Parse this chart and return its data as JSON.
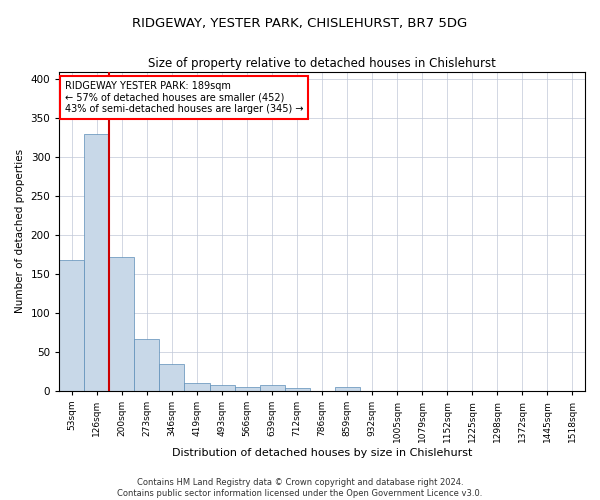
{
  "title": "RIDGEWAY, YESTER PARK, CHISLEHURST, BR7 5DG",
  "subtitle": "Size of property relative to detached houses in Chislehurst",
  "xlabel": "Distribution of detached houses by size in Chislehurst",
  "ylabel": "Number of detached properties",
  "bar_color": "#c8d8e8",
  "bar_edge_color": "#5b8db8",
  "property_line_color": "#cc0000",
  "categories": [
    "53sqm",
    "126sqm",
    "200sqm",
    "273sqm",
    "346sqm",
    "419sqm",
    "493sqm",
    "566sqm",
    "639sqm",
    "712sqm",
    "786sqm",
    "859sqm",
    "932sqm",
    "1005sqm",
    "1079sqm",
    "1152sqm",
    "1225sqm",
    "1298sqm",
    "1372sqm",
    "1445sqm",
    "1518sqm"
  ],
  "values": [
    168,
    330,
    172,
    67,
    35,
    10,
    8,
    5,
    8,
    3,
    0,
    5,
    0,
    0,
    0,
    0,
    0,
    0,
    0,
    0,
    0
  ],
  "property_bin_index": 1,
  "annotation_line1": "RIDGEWAY YESTER PARK: 189sqm",
  "annotation_line2": "← 57% of detached houses are smaller (452)",
  "annotation_line3": "43% of semi-detached houses are larger (345) →",
  "ylim": [
    0,
    410
  ],
  "yticks": [
    0,
    50,
    100,
    150,
    200,
    250,
    300,
    350,
    400
  ],
  "background_color": "#ffffff",
  "grid_color": "#c0c8d8",
  "footer_text": "Contains HM Land Registry data © Crown copyright and database right 2024.\nContains public sector information licensed under the Open Government Licence v3.0.",
  "title_fontsize": 9.5,
  "subtitle_fontsize": 8.5,
  "ylabel_fontsize": 7.5,
  "xlabel_fontsize": 8,
  "tick_fontsize": 6.5,
  "ytick_fontsize": 7.5,
  "annotation_fontsize": 7,
  "footer_fontsize": 6
}
